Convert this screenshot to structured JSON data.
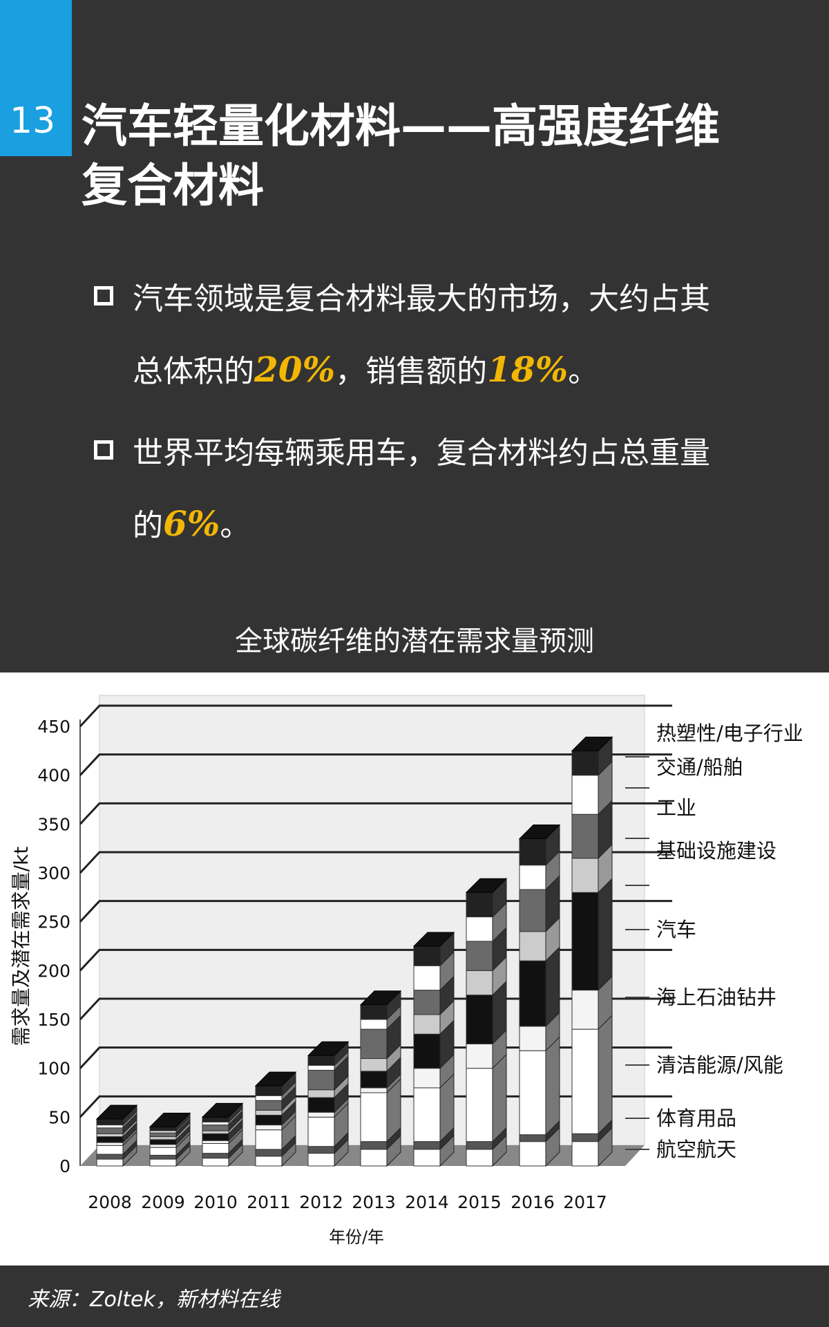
{
  "page_number": "13",
  "title": "汽车轻量化材料——高强度纤维复合材料",
  "bullets": [
    {
      "parts": [
        "汽车领域是复合材料最大的市场，大约占其总体积的",
        "20%",
        "，销售额的",
        "18%",
        "。"
      ]
    },
    {
      "parts": [
        "世界平均每辆乘用车，复合材料约占总重量的",
        "6%",
        "。"
      ]
    }
  ],
  "accent_color": "#f2b705",
  "badge_color": "#1a9fe0",
  "source": "来源：Zoltek，新材料在线",
  "chart_data": {
    "type": "bar",
    "stacked": true,
    "style": "3d",
    "title": "全球碳纤维的潜在需求量预测",
    "xlabel": "年份/年",
    "ylabel": "需求量及潜在需求量/kt",
    "ylim": [
      0,
      450
    ],
    "yticks": [
      0,
      50,
      100,
      150,
      200,
      250,
      300,
      350,
      400,
      450
    ],
    "grid": true,
    "legend_placement": "right",
    "categories": [
      "2008",
      "2009",
      "2010",
      "2011",
      "2012",
      "2013",
      "2014",
      "2015",
      "2016",
      "2017"
    ],
    "series": [
      {
        "name": "航空航天",
        "color": "#ffffff",
        "values": [
          7,
          7,
          8,
          10,
          13,
          17,
          17,
          17,
          25,
          25
        ]
      },
      {
        "name": "体育用品",
        "color": "#555555",
        "values": [
          5,
          4,
          5,
          7,
          7,
          8,
          8,
          8,
          7,
          8
        ]
      },
      {
        "name": "清洁能源/风能",
        "color": "#ffffff",
        "values": [
          9,
          8,
          10,
          20,
          30,
          50,
          55,
          75,
          86,
          107
        ]
      },
      {
        "name": "海上石油钻井",
        "color": "#f4f4f4",
        "values": [
          3,
          3,
          3,
          5,
          5,
          5,
          20,
          25,
          25,
          40
        ]
      },
      {
        "name": "汽车",
        "color": "#111111",
        "values": [
          6,
          5,
          7,
          10,
          15,
          17,
          35,
          50,
          67,
          100
        ]
      },
      {
        "name": "基础设施建设",
        "color": "#cccccc",
        "values": [
          3,
          3,
          3,
          5,
          8,
          13,
          20,
          25,
          30,
          35
        ]
      },
      {
        "name": "工业",
        "color": "#6a6a6a",
        "values": [
          6,
          4,
          6,
          10,
          20,
          30,
          25,
          30,
          43,
          45
        ]
      },
      {
        "name": "交通/船舶",
        "color": "#ffffff",
        "values": [
          3,
          2,
          3,
          5,
          5,
          10,
          25,
          25,
          25,
          40
        ]
      },
      {
        "name": "热塑性/电子行业",
        "color": "#222222",
        "values": [
          6,
          4,
          5,
          10,
          10,
          15,
          20,
          25,
          27,
          25
        ]
      }
    ]
  }
}
